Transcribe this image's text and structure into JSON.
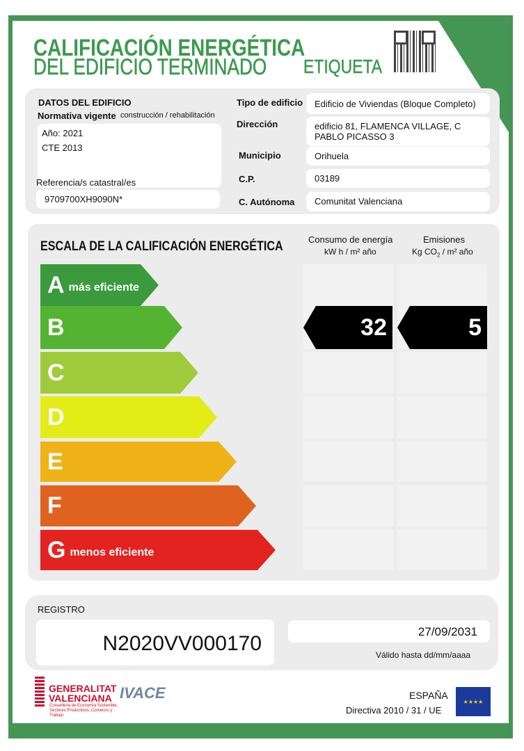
{
  "header": {
    "title_line1": "CALIFICACIÓN ENERGÉTICA",
    "title_line2": "DEL EDIFICIO  TERMINADO",
    "label": "ETIQUETA",
    "qr_icon": "qr-code-icon"
  },
  "building": {
    "section_title": "DATOS DEL EDIFICIO",
    "normativa_label": "Normativa vigente",
    "normativa_note": "construcción / rehabilitación",
    "year": "Año: 2021",
    "code": "CTE 2013",
    "cadastral_label": "Referencia/s catastral/es",
    "cadastral_value": "9709700XH9090N*",
    "fields": [
      {
        "label": "Tipo de edificio",
        "value": "Edificio de Viviendas (Bloque Completo)"
      },
      {
        "label": "Dirección",
        "value": "edificio 81, FLAMENCA VILLAGE, C PABLO PICASSO 3"
      },
      {
        "label": "Municipio",
        "value": "Orihuela"
      },
      {
        "label": "C.P.",
        "value": "03189"
      },
      {
        "label": "C. Autónoma",
        "value": "Comunitat Valenciana"
      }
    ]
  },
  "scale": {
    "title": "ESCALA DE LA CALIFICACIÓN ENERGÉTICA",
    "energy_header": "Consumo de energía",
    "energy_unit": "kW h / m² año",
    "emissions_header": "Emisiones",
    "emissions_unit_pre": "Kg CO",
    "emissions_unit_sub": "2",
    "emissions_unit_post": " / m² año",
    "classes": [
      {
        "letter": "A",
        "sub": "más eficiente",
        "color": "#3a9a3c"
      },
      {
        "letter": "B",
        "sub": "",
        "color": "#55b332"
      },
      {
        "letter": "C",
        "sub": "",
        "color": "#9fcb3a"
      },
      {
        "letter": "D",
        "sub": "",
        "color": "#e3ec16"
      },
      {
        "letter": "E",
        "sub": "",
        "color": "#efb318"
      },
      {
        "letter": "F",
        "sub": "",
        "color": "#df631e"
      },
      {
        "letter": "G",
        "sub": "menos eficiente",
        "color": "#e2231f"
      }
    ],
    "rating_class": "B",
    "energy_value": "32",
    "emissions_value": "5"
  },
  "registry": {
    "label": "REGISTRO",
    "number": "N2020VV000170",
    "valid_date": "27/09/2031",
    "valid_label": "Válido hasta dd/mm/aaaa"
  },
  "footer": {
    "gv_line1": "GENERALITAT",
    "gv_line2": "VALENCIANA",
    "gv_dept": "Conselleria de Economía Sostenible, Sectores Productivos, Comercio y Trabajo",
    "ivace": "IVACE",
    "country": "ESPAÑA",
    "directive": "Directiva 2010 / 31 / UE",
    "eu_flag_icon": "eu-flag-icon"
  }
}
